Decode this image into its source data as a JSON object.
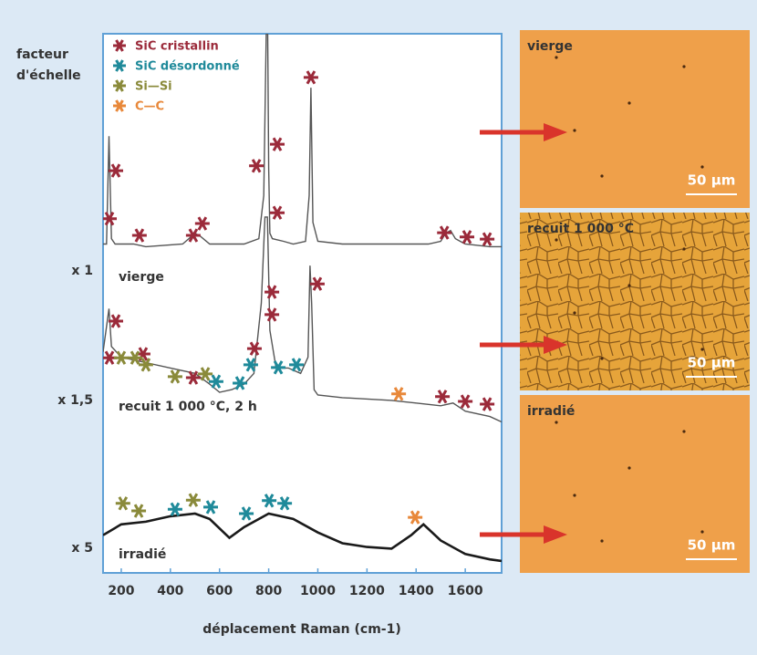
{
  "chart_data": {
    "type": "line",
    "scale_title": [
      "facteur",
      "d'échelle"
    ],
    "x_label": "déplacement Raman (cm-1)",
    "xlim": [
      126,
      1748
    ],
    "xticks": [
      200,
      400,
      600,
      800,
      1000,
      1200,
      1400,
      1600
    ],
    "ylim": [
      0,
      100
    ],
    "series": [
      {
        "name": "vierge",
        "scale": "x 1",
        "color": "#555555",
        "x": [
          126,
          140,
          150,
          160,
          175,
          250,
          300,
          450,
          500,
          520,
          560,
          700,
          760,
          780,
          790,
          796,
          800,
          805,
          815,
          860,
          900,
          950,
          965,
          972,
          980,
          1000,
          1100,
          1300,
          1450,
          1500,
          1520,
          1540,
          1560,
          1600,
          1700,
          1748
        ],
        "values": [
          61,
          61,
          81,
          62,
          61,
          61,
          60.5,
          61,
          63,
          62.5,
          61,
          61,
          62,
          70,
          100,
          100,
          75,
          63,
          62,
          61.5,
          61,
          61.5,
          70,
          90,
          65,
          61.5,
          61,
          61,
          61,
          61.5,
          63,
          63.5,
          62,
          61,
          60.5,
          60.5
        ]
      },
      {
        "name": "recuit 1 000 °C, 2 h",
        "scale": "x 1,5",
        "color": "#555555",
        "x": [
          126,
          150,
          160,
          200,
          300,
          400,
          500,
          560,
          600,
          650,
          700,
          740,
          770,
          785,
          795,
          805,
          830,
          880,
          930,
          960,
          968,
          975,
          985,
          1000,
          1100,
          1300,
          1400,
          1500,
          1550,
          1600,
          1700,
          1748
        ],
        "values": [
          41,
          49,
          42,
          40,
          39,
          38,
          37,
          35,
          33.5,
          34,
          35,
          37,
          50,
          66,
          66,
          45,
          38,
          38,
          37,
          40,
          57,
          50,
          34,
          33,
          32.5,
          32,
          31.5,
          31,
          31.5,
          30,
          29,
          28
        ]
      },
      {
        "name": "irradié",
        "scale": "x 5",
        "color": "#1a1a1a",
        "x": [
          126,
          200,
          300,
          400,
          500,
          560,
          640,
          700,
          800,
          900,
          1000,
          1100,
          1200,
          1300,
          1380,
          1430,
          1500,
          1600,
          1700,
          1748
        ],
        "values": [
          7,
          9,
          9.5,
          10.5,
          11,
          10,
          6.5,
          8.5,
          11,
          10,
          7.5,
          5.5,
          4.8,
          4.5,
          7,
          9,
          6,
          3.5,
          2.5,
          2.2
        ]
      }
    ],
    "markers": [
      {
        "name": "SiC cristallin",
        "color": "#9b2a3a",
        "x": [
          152,
          178,
          274,
          493,
          530,
          750,
          835,
          835,
          972,
          1515,
          1607,
          1689,
          178,
          152,
          289,
          493,
          742,
          813,
          813,
          998,
          1507,
          1600,
          1689
        ],
        "y": [
          65.7,
          74.6,
          62.6,
          62.6,
          64.8,
          75.5,
          79.5,
          66.8,
          91.9,
          63.1,
          62.3,
          61.9,
          46.7,
          39.9,
          40.6,
          36.2,
          41.6,
          47.9,
          52.1,
          53.6,
          32.7,
          31.8,
          31.3
        ]
      },
      {
        "name": "SiC désordonné",
        "color": "#1f8a9a",
        "x": [
          586,
          683,
          727,
          839,
          913,
          419,
          564,
          709,
          802,
          865
        ],
        "y": [
          35.5,
          35.2,
          38.6,
          38.1,
          38.6,
          11.8,
          12.2,
          11,
          13.4,
          12.9
        ]
      },
      {
        "name": "Si—Si",
        "color": "#8a8a3a",
        "x": [
          200,
          256,
          300,
          419,
          542,
          207,
          271,
          493
        ],
        "y": [
          39.9,
          39.9,
          38.6,
          36.4,
          36.9,
          12.9,
          11.5,
          13.5
        ]
      },
      {
        "name": "C—C",
        "color": "#e8883a",
        "x": [
          1329,
          1396
        ],
        "y": [
          33.2,
          10.3
        ]
      }
    ]
  },
  "micrographs": [
    {
      "label": "vierge",
      "scale_bar": "50 µm"
    },
    {
      "label": "recuit 1 000 °C",
      "scale_bar": "50 µm"
    },
    {
      "label": "irradié",
      "scale_bar": "50 µm"
    }
  ]
}
